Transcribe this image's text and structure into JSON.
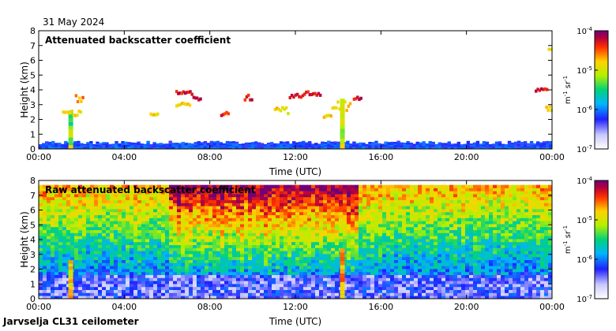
{
  "date_label": "31 May 2024",
  "footer_label": "Jarvselja CL31 ceilometer",
  "chart_data": [
    {
      "type": "heatmap",
      "title": "Attenuated backscatter coefficient",
      "xlabel": "Time (UTC)",
      "ylabel": "Height (km)",
      "xlim": [
        0,
        24
      ],
      "ylim": [
        0,
        8
      ],
      "xticks": [
        0,
        4,
        8,
        12,
        16,
        20,
        24
      ],
      "xtick_labels": [
        "00:00",
        "04:00",
        "08:00",
        "12:00",
        "16:00",
        "20:00",
        "00:00"
      ],
      "yticks": [
        0,
        1,
        2,
        3,
        4,
        5,
        6,
        7,
        8
      ],
      "ytick_labels": [
        "0",
        "1",
        "2",
        "3",
        "4",
        "5",
        "6",
        "7",
        "8"
      ],
      "colorbar": {
        "label_base": "m",
        "label_exp1": "-1",
        "label_mid": " sr",
        "label_exp2": "-1",
        "scale": "log",
        "range": [
          1e-07,
          0.0001
        ],
        "tick_labels": [
          {
            "base": "10",
            "exp": "-4"
          },
          {
            "base": "10",
            "exp": "-5"
          },
          {
            "base": "10",
            "exp": "-6"
          },
          {
            "base": "10",
            "exp": "-7"
          }
        ]
      },
      "features": {
        "boundary_layer_top_km": 0.4,
        "precip_shafts": [
          {
            "time_h": 1.5,
            "top_km": 2.6,
            "intensity": 0.55
          },
          {
            "time_h": 14.2,
            "top_km": 3.4,
            "intensity": 0.6
          }
        ],
        "cloud_segments": [
          {
            "t0": 1.1,
            "t1": 2.0,
            "h0": 2.2,
            "h1": 2.6,
            "level": 0.72
          },
          {
            "t0": 1.7,
            "t1": 2.1,
            "h0": 3.2,
            "h1": 3.8,
            "level": 0.78
          },
          {
            "t0": 5.2,
            "t1": 5.6,
            "h0": 2.3,
            "h1": 2.4,
            "level": 0.72
          },
          {
            "t0": 6.4,
            "t1": 7.2,
            "h0": 3.7,
            "h1": 3.9,
            "level": 0.9
          },
          {
            "t0": 6.4,
            "t1": 7.1,
            "h0": 2.9,
            "h1": 3.1,
            "level": 0.72
          },
          {
            "t0": 7.2,
            "t1": 7.6,
            "h0": 3.3,
            "h1": 3.5,
            "level": 0.9
          },
          {
            "t0": 8.5,
            "t1": 8.9,
            "h0": 2.2,
            "h1": 2.6,
            "level": 0.9
          },
          {
            "t0": 9.6,
            "t1": 10.0,
            "h0": 3.3,
            "h1": 3.7,
            "level": 0.9
          },
          {
            "t0": 11.0,
            "t1": 11.7,
            "h0": 2.0,
            "h1": 2.8,
            "level": 0.72
          },
          {
            "t0": 11.7,
            "t1": 12.3,
            "h0": 3.4,
            "h1": 3.7,
            "level": 0.9
          },
          {
            "t0": 12.3,
            "t1": 13.2,
            "h0": 3.6,
            "h1": 3.9,
            "level": 0.9
          },
          {
            "t0": 13.3,
            "t1": 13.7,
            "h0": 2.1,
            "h1": 2.4,
            "level": 0.72
          },
          {
            "t0": 13.7,
            "t1": 14.6,
            "h0": 2.4,
            "h1": 3.2,
            "level": 0.72
          },
          {
            "t0": 14.7,
            "t1": 15.1,
            "h0": 3.2,
            "h1": 3.6,
            "level": 0.9
          },
          {
            "t0": 23.2,
            "t1": 23.8,
            "h0": 3.9,
            "h1": 4.1,
            "level": 0.9
          },
          {
            "t0": 23.8,
            "t1": 24.0,
            "h0": 6.2,
            "h1": 6.8,
            "level": 0.72
          },
          {
            "t0": 23.7,
            "t1": 24.0,
            "h0": 2.6,
            "h1": 2.9,
            "level": 0.72
          }
        ]
      }
    },
    {
      "type": "heatmap",
      "title": "Raw attenuated backscatter coefficient",
      "xlabel": "Time (UTC)",
      "ylabel": "Height (km)",
      "xlim": [
        0,
        24
      ],
      "ylim": [
        0,
        8
      ],
      "xticks": [
        0,
        4,
        8,
        12,
        16,
        20,
        24
      ],
      "xtick_labels": [
        "00:00",
        "04:00",
        "08:00",
        "12:00",
        "16:00",
        "20:00",
        "00:00"
      ],
      "yticks": [
        0,
        1,
        2,
        3,
        4,
        5,
        6,
        7,
        8
      ],
      "ytick_labels": [
        "0",
        "1",
        "2",
        "3",
        "4",
        "5",
        "6",
        "7",
        "8"
      ],
      "colorbar": {
        "label_base": "m",
        "label_exp1": "-1",
        "label_mid": " sr",
        "label_exp2": "-1",
        "scale": "log",
        "range": [
          1e-07,
          0.0001
        ],
        "tick_labels": [
          {
            "base": "10",
            "exp": "-4"
          },
          {
            "base": "10",
            "exp": "-5"
          },
          {
            "base": "10",
            "exp": "-6"
          },
          {
            "base": "10",
            "exp": "-7"
          }
        ]
      },
      "features": {
        "noise_floor_km": 7.7,
        "noisy_period_h": [
          6.0,
          15.0
        ],
        "precip_shafts": [
          {
            "time_h": 1.5,
            "top_km": 2.6,
            "intensity": 0.6
          },
          {
            "time_h": 14.2,
            "top_km": 3.4,
            "intensity": 0.7
          }
        ]
      }
    }
  ]
}
